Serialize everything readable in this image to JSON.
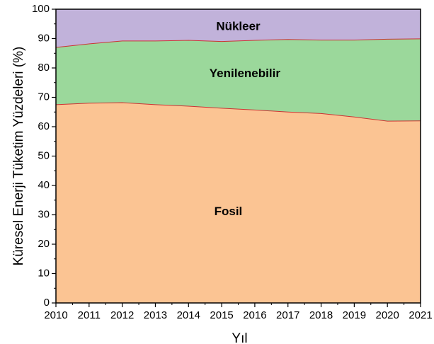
{
  "chart_data": {
    "type": "area",
    "stacked": true,
    "x": [
      2010,
      2011,
      2012,
      2013,
      2014,
      2015,
      2016,
      2017,
      2018,
      2019,
      2020,
      2021
    ],
    "series": [
      {
        "name": "Fosil",
        "color": "#fbc493",
        "values": [
          67.5,
          68.0,
          68.2,
          67.5,
          67.0,
          66.3,
          65.7,
          65.0,
          64.5,
          63.3,
          61.9,
          62.0
        ]
      },
      {
        "name": "Yenilenebilir",
        "color": "#9bd89b",
        "values": [
          19.5,
          20.2,
          21.0,
          21.7,
          22.4,
          22.7,
          23.7,
          24.7,
          25.0,
          26.2,
          27.9,
          27.9
        ]
      },
      {
        "name": "Nükleer",
        "color": "#c1b2da",
        "values": [
          13.0,
          11.8,
          10.8,
          10.8,
          10.6,
          11.0,
          10.6,
          10.3,
          10.5,
          10.5,
          10.2,
          10.1
        ]
      }
    ],
    "title": "",
    "xlabel": "Yıl",
    "ylabel": "Küresel Enerji Tüketim Yüzdeleri (%)",
    "xlim": [
      2010,
      2021
    ],
    "ylim": [
      0,
      100
    ],
    "yticks": [
      0,
      10,
      20,
      30,
      40,
      50,
      60,
      70,
      80,
      90,
      100
    ],
    "xticks": [
      2010,
      2011,
      2012,
      2013,
      2014,
      2015,
      2016,
      2017,
      2018,
      2019,
      2020,
      2021
    ],
    "boundary_color": "#cc3333",
    "grid": false,
    "legend": "none"
  }
}
